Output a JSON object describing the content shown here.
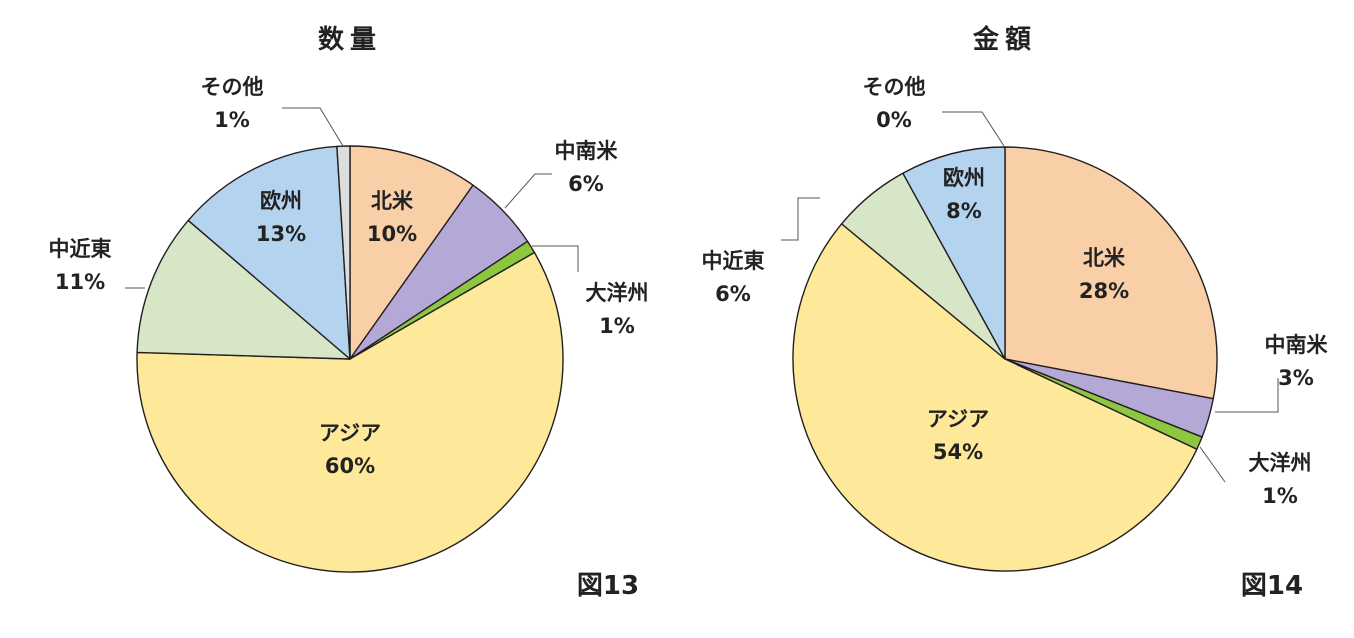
{
  "colors": {
    "north_america": "#F9CFA7",
    "latin_america": "#B4A9D6",
    "oceania": "#8DC63F",
    "asia": "#FEE99A",
    "middle_east": "#D7E6C6",
    "europe": "#B4D3EE",
    "other": "#DCDDDD"
  },
  "chart_data": [
    {
      "type": "pie",
      "title": "数量",
      "figure_label": "図13",
      "slices": [
        {
          "label": "北米",
          "value": 10,
          "display": "10%",
          "color_key": "north_america"
        },
        {
          "label": "中南米",
          "value": 6,
          "display": "6%",
          "color_key": "latin_america"
        },
        {
          "label": "大洋州",
          "value": 1,
          "display": "1%",
          "color_key": "oceania"
        },
        {
          "label": "アジア",
          "value": 60,
          "display": "60%",
          "color_key": "asia"
        },
        {
          "label": "中近東",
          "value": 11,
          "display": "11%",
          "color_key": "middle_east"
        },
        {
          "label": "欧州",
          "value": 13,
          "display": "13%",
          "color_key": "europe"
        },
        {
          "label": "その他",
          "value": 1,
          "display": "1%",
          "color_key": "other"
        }
      ]
    },
    {
      "type": "pie",
      "title": "金額",
      "figure_label": "図14",
      "slices": [
        {
          "label": "北米",
          "value": 28,
          "display": "28%",
          "color_key": "north_america"
        },
        {
          "label": "中南米",
          "value": 3,
          "display": "3%",
          "color_key": "latin_america"
        },
        {
          "label": "大洋州",
          "value": 1,
          "display": "1%",
          "color_key": "oceania"
        },
        {
          "label": "アジア",
          "value": 54,
          "display": "54%",
          "color_key": "asia"
        },
        {
          "label": "中近東",
          "value": 6,
          "display": "6%",
          "color_key": "middle_east"
        },
        {
          "label": "欧州",
          "value": 8,
          "display": "8%",
          "color_key": "europe"
        },
        {
          "label": "その他",
          "value": 0,
          "display": "0%",
          "color_key": "other"
        }
      ]
    }
  ]
}
